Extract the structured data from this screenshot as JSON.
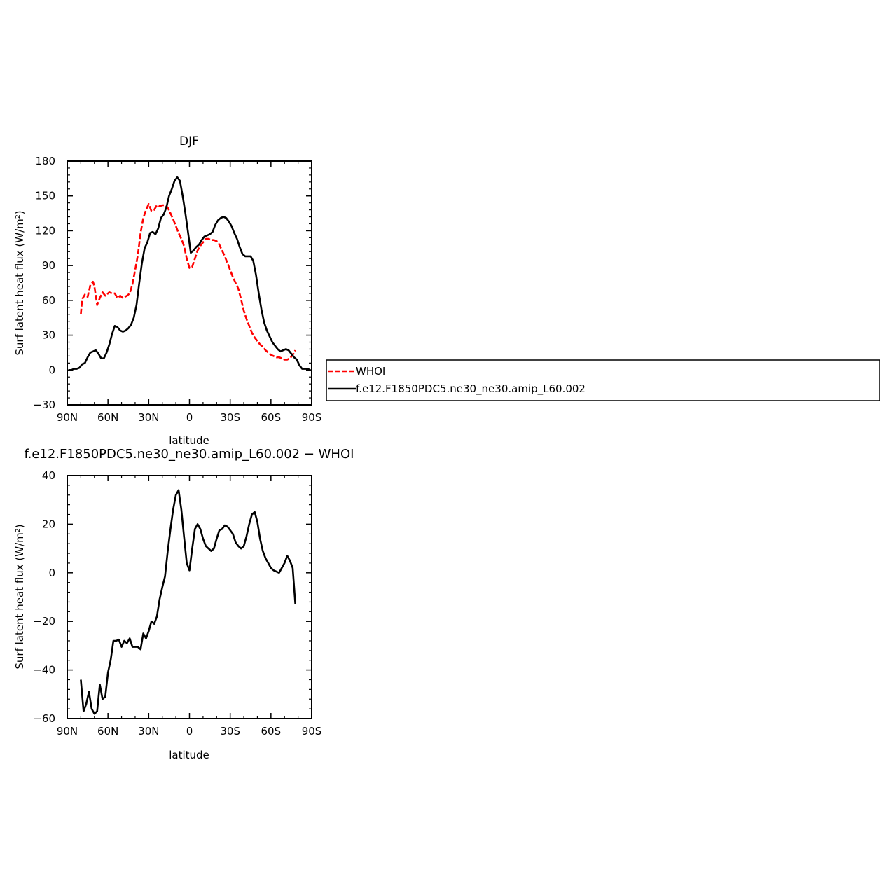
{
  "chart_data": [
    {
      "type": "line",
      "title": "DJF",
      "xlabel": "latitude",
      "ylabel": "Surf latent heat flux (W/m²)",
      "xlim": [
        90,
        -90
      ],
      "ylim": [
        -30,
        180
      ],
      "x_ticks": [
        {
          "value": 90,
          "label": "90N"
        },
        {
          "value": 60,
          "label": "60N"
        },
        {
          "value": 30,
          "label": "30N"
        },
        {
          "value": 0,
          "label": "0"
        },
        {
          "value": -30,
          "label": "30S"
        },
        {
          "value": -60,
          "label": "60S"
        },
        {
          "value": -90,
          "label": "90S"
        }
      ],
      "y_ticks": [
        {
          "value": 180,
          "label": "180"
        },
        {
          "value": 150,
          "label": "150"
        },
        {
          "value": 120,
          "label": "120"
        },
        {
          "value": 90,
          "label": "90"
        },
        {
          "value": 60,
          "label": "60"
        },
        {
          "value": 30,
          "label": "30"
        },
        {
          "value": 0,
          "label": "0"
        },
        {
          "value": -30,
          "label": "−30"
        }
      ],
      "legend": [
        {
          "label": "WHOI",
          "color": "#ff0000",
          "dash": "dashed"
        },
        {
          "label": "f.e12.F1850PDC5.ne30_ne30.amip_L60.002",
          "color": "#000000",
          "dash": "solid"
        }
      ],
      "series": [
        {
          "name": "WHOI",
          "color": "#ff0000",
          "dash": "dashed",
          "x": [
            80,
            79,
            77,
            75,
            73,
            71,
            70,
            68,
            66,
            64,
            62,
            59,
            57,
            55,
            53,
            51,
            49,
            46,
            44,
            42,
            40,
            38,
            36,
            34,
            32,
            30,
            28,
            26,
            24,
            22,
            20,
            18,
            16,
            14,
            12,
            10,
            8,
            6,
            4,
            2,
            0,
            -2,
            -4,
            -6,
            -8,
            -10,
            -12,
            -14,
            -16,
            -18,
            -20,
            -22,
            -24,
            -26,
            -28,
            -30,
            -32,
            -34,
            -36,
            -38,
            -40,
            -42,
            -44,
            -46,
            -48,
            -50,
            -52,
            -54,
            -56,
            -58,
            -60,
            -62,
            -64,
            -66,
            -68,
            -70,
            -72,
            -74,
            -76,
            -78
          ],
          "values": [
            48,
            61,
            65,
            63,
            73,
            76,
            72,
            56,
            62,
            67,
            64,
            67,
            66,
            66,
            62,
            64,
            62,
            64,
            66,
            74,
            86,
            99,
            118,
            131,
            138,
            143,
            137,
            138,
            142,
            141,
            142,
            142,
            140,
            135,
            130,
            124,
            118,
            113,
            107,
            96,
            88,
            89,
            96,
            103,
            107,
            110,
            113,
            113,
            112,
            112,
            111,
            108,
            103,
            98,
            92,
            86,
            80,
            75,
            70,
            61,
            51,
            44,
            38,
            32,
            28,
            25,
            22,
            20,
            17,
            15,
            13,
            12,
            11,
            11,
            10,
            9,
            9,
            10,
            13,
            17
          ]
        },
        {
          "name": "f.e12.F1850PDC5.ne30_ne30.amip_L60.002",
          "color": "#000000",
          "dash": "solid",
          "x": [
            89,
            87,
            85,
            83,
            81,
            79,
            77,
            75,
            73,
            71,
            69,
            67,
            65,
            63,
            61,
            59,
            57,
            55,
            53,
            51,
            49,
            47,
            45,
            43,
            41,
            39,
            37,
            35,
            33,
            31,
            29,
            27,
            25,
            23,
            21,
            19,
            17,
            15,
            13,
            11,
            9,
            7,
            5,
            3,
            1,
            -1,
            -3,
            -5,
            -7,
            -9,
            -11,
            -13,
            -15,
            -17,
            -19,
            -21,
            -23,
            -25,
            -27,
            -29,
            -31,
            -33,
            -35,
            -37,
            -39,
            -41,
            -43,
            -45,
            -47,
            -49,
            -51,
            -53,
            -55,
            -57,
            -59,
            -61,
            -63,
            -65,
            -67,
            -69,
            -71,
            -73,
            -75,
            -77,
            -79,
            -81,
            -83,
            -85,
            -87,
            -89
          ],
          "values": [
            0,
            0,
            1,
            1,
            2,
            5,
            6,
            11,
            15,
            16,
            17,
            14,
            10,
            10,
            15,
            22,
            31,
            38,
            37,
            34,
            33,
            34,
            36,
            39,
            45,
            56,
            75,
            92,
            105,
            110,
            118,
            119,
            117,
            122,
            131,
            134,
            140,
            150,
            156,
            163,
            166,
            163,
            150,
            135,
            118,
            101,
            103,
            106,
            108,
            112,
            115,
            116,
            117,
            119,
            125,
            129,
            131,
            132,
            131,
            128,
            124,
            118,
            113,
            106,
            100,
            98,
            98,
            98,
            94,
            82,
            66,
            52,
            41,
            34,
            29,
            24,
            21,
            18,
            16,
            17,
            18,
            17,
            14,
            11,
            9,
            4,
            1,
            1,
            1,
            0
          ]
        }
      ]
    },
    {
      "type": "line",
      "title": "f.e12.F1850PDC5.ne30_ne30.amip_L60.002 − WHOI",
      "xlabel": "latitude",
      "ylabel": "Surf latent heat flux (W/m²)",
      "xlim": [
        90,
        -90
      ],
      "ylim": [
        -60,
        40
      ],
      "x_ticks": [
        {
          "value": 90,
          "label": "90N"
        },
        {
          "value": 60,
          "label": "60N"
        },
        {
          "value": 30,
          "label": "30N"
        },
        {
          "value": 0,
          "label": "0"
        },
        {
          "value": -30,
          "label": "30S"
        },
        {
          "value": -60,
          "label": "60S"
        },
        {
          "value": -90,
          "label": "90S"
        }
      ],
      "y_ticks": [
        {
          "value": 40,
          "label": "40"
        },
        {
          "value": 20,
          "label": "20"
        },
        {
          "value": 0,
          "label": "0"
        },
        {
          "value": -20,
          "label": "−20"
        },
        {
          "value": -40,
          "label": "−40"
        },
        {
          "value": -60,
          "label": "−60"
        }
      ],
      "series": [
        {
          "color": "#000000",
          "dash": "solid",
          "x": [
            80,
            78,
            76,
            74,
            72,
            70,
            68,
            66,
            64,
            62,
            60,
            58,
            56,
            54,
            52,
            50,
            48,
            46,
            44,
            42,
            40,
            38,
            36,
            34,
            32,
            30,
            28,
            26,
            24,
            22,
            20,
            18,
            16,
            14,
            12,
            10,
            8,
            6,
            4,
            2,
            0,
            -2,
            -4,
            -6,
            -8,
            -10,
            -12,
            -14,
            -16,
            -18,
            -20,
            -22,
            -24,
            -26,
            -28,
            -30,
            -32,
            -34,
            -36,
            -38,
            -40,
            -42,
            -44,
            -46,
            -48,
            -50,
            -52,
            -54,
            -56,
            -58,
            -60,
            -62,
            -64,
            -66,
            -68,
            -70,
            -72,
            -74,
            -76,
            -78
          ],
          "values": [
            -44,
            -57,
            -54,
            -49,
            -56,
            -58,
            -57,
            -46,
            -52,
            -51,
            -41,
            -36,
            -28,
            -28,
            -27.5,
            -30.5,
            -28,
            -29,
            -27,
            -30.5,
            -30.5,
            -30.5,
            -31.5,
            -25,
            -27,
            -24,
            -20,
            -21,
            -18,
            -11,
            -6,
            -1.5,
            9,
            18,
            26,
            32,
            34,
            26,
            15,
            4,
            1,
            10,
            18,
            20,
            18,
            14,
            11,
            10,
            9,
            10,
            14,
            17.5,
            18,
            19.5,
            19,
            17.5,
            16,
            12.5,
            11,
            10,
            11,
            15,
            20,
            24,
            25,
            21,
            14,
            9,
            6,
            4,
            2,
            1,
            0.5,
            0,
            2,
            4,
            7,
            5,
            2,
            -13
          ]
        }
      ]
    }
  ]
}
